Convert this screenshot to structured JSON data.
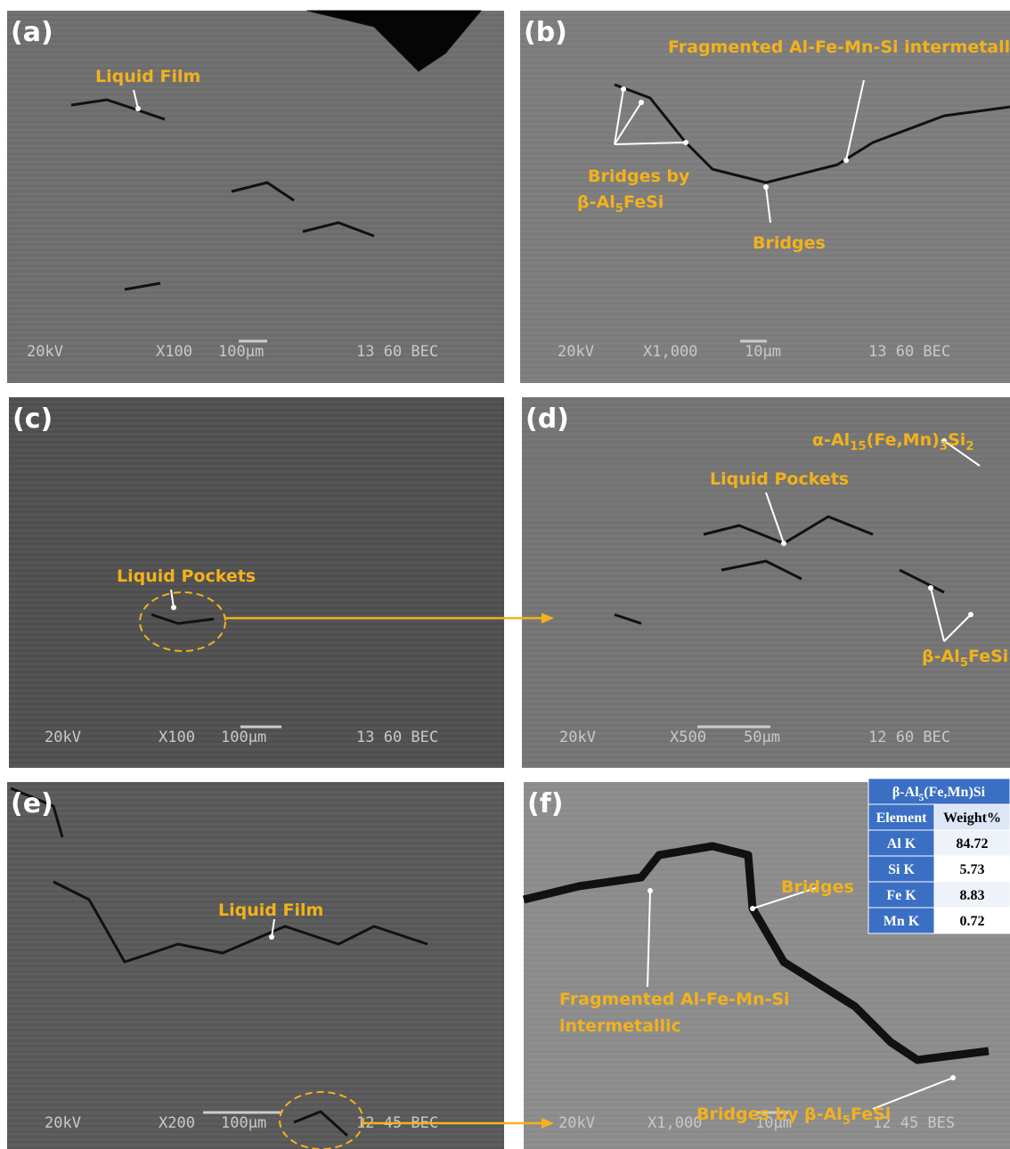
{
  "panels": [
    {
      "label": "(a)",
      "info": [
        "20kV",
        "X100",
        "100µm",
        "13 60 BEC"
      ],
      "annotations": [
        [
          "Liquid Film"
        ]
      ]
    },
    {
      "label": "(b)",
      "info": [
        "20kV",
        "X1,000",
        "10µm",
        "13 60 BEC"
      ],
      "annotations": [
        [
          "Fragmented Al-Fe-Mn-Si intermetallic"
        ],
        [
          "Bridges by"
        ],
        [
          "β-Al",
          {
            "sub": "5"
          },
          "FeSi"
        ],
        [
          "Bridges"
        ]
      ]
    },
    {
      "label": "(c)",
      "info": [
        "20kV",
        "X100",
        "100µm",
        "13 60 BEC"
      ],
      "annotations": [
        [
          "Liquid Pockets"
        ]
      ]
    },
    {
      "label": "(d)",
      "info": [
        "20kV",
        "X500",
        "50µm",
        "12 60 BEC"
      ],
      "annotations": [
        [
          "α-Al",
          {
            "sub": "15"
          },
          "(Fe,Mn)",
          {
            "sub": "3"
          },
          "Si",
          {
            "sub": "2"
          }
        ],
        [
          "Liquid Pockets"
        ],
        [
          "β-Al",
          {
            "sub": "5"
          },
          "FeSi"
        ]
      ]
    },
    {
      "label": "(e)",
      "info": [
        "20kV",
        "X200",
        "100µm",
        "12 45 BEC"
      ],
      "annotations": [
        [
          "Liquid Film"
        ]
      ]
    },
    {
      "label": "(f)",
      "info": [
        "20kV",
        "X1,000",
        "10µm",
        "12 45 BES"
      ],
      "annotations": [
        [
          "Bridges"
        ],
        [
          "Fragmented Al-Fe-Mn-Si"
        ],
        [
          "intermetallic"
        ],
        [
          "Bridges by β-Al",
          {
            "sub": "5"
          },
          "FeSi"
        ]
      ]
    }
  ],
  "table": {
    "title": [
      "β-Al",
      {
        "sub": "5"
      },
      "(Fe,Mn)Si"
    ],
    "header": [
      "Element",
      "Weight%"
    ],
    "rows": [
      [
        "Al K",
        "84.72"
      ],
      [
        "Si K",
        "5.73"
      ],
      [
        "Fe K",
        "8.83"
      ],
      [
        "Mn K",
        "0.72"
      ]
    ]
  }
}
